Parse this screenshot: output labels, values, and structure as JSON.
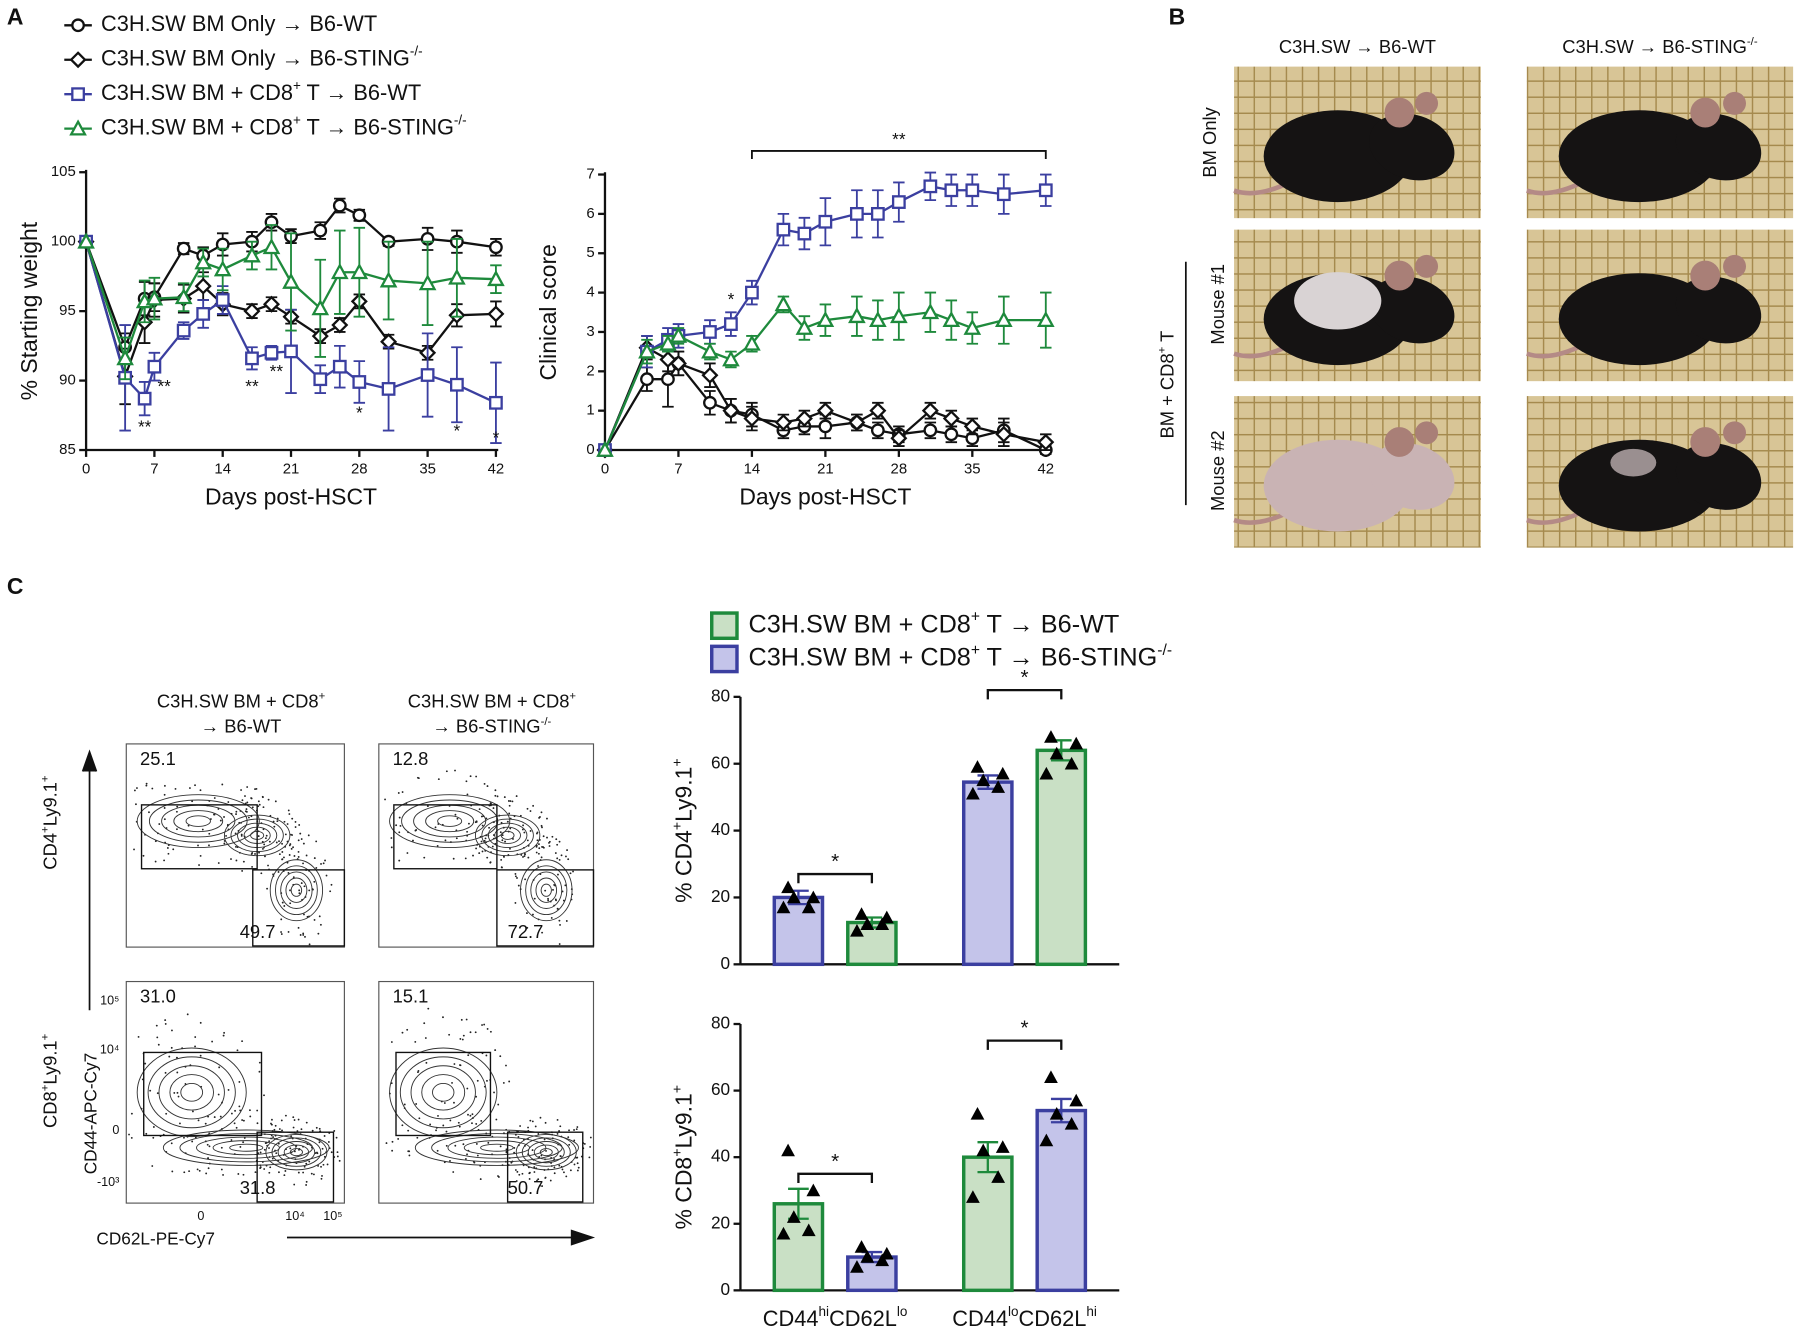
{
  "panel_labels": [
    "A",
    "B",
    "C"
  ],
  "chart_data": [
    {
      "type": "line",
      "xlabel": "Days post-HSCT",
      "ylabel": "% Starting weight",
      "x": [
        0,
        4,
        6,
        7,
        10,
        12,
        14,
        17,
        19,
        21,
        24,
        26,
        28,
        31,
        35,
        38,
        42
      ],
      "xlim": [
        0,
        42
      ],
      "xticks": [
        0,
        7,
        14,
        21,
        28,
        35,
        42
      ],
      "ylim": [
        85,
        105
      ],
      "yticks": [
        85,
        90,
        95,
        100,
        105
      ],
      "series": [
        {
          "name": "C3H.SW BM Only → B6-WT",
          "color": "#111111",
          "marker": "circle",
          "values": [
            100,
            92.4,
            95.9,
            96,
            99.5,
            99,
            99.8,
            100,
            101.4,
            100.4,
            100.8,
            102.6,
            101.9,
            100,
            100.2,
            100,
            99.6
          ],
          "errors": [
            0,
            1,
            1.2,
            1,
            0.4,
            0.6,
            0.8,
            0.7,
            0.6,
            0.5,
            0.6,
            0.5,
            0.4,
            0.3,
            0.8,
            0.8,
            0.6
          ]
        },
        {
          "name": "C3H.SW BM Only → B6-STING-/-",
          "color": "#111111",
          "marker": "diamond",
          "values": [
            100,
            90.3,
            94.2,
            95.8,
            95.9,
            96.8,
            95.5,
            95,
            95.5,
            94.6,
            93.2,
            94,
            95.7,
            92.8,
            92,
            94.7,
            94.8
          ],
          "errors": [
            0,
            2,
            1.5,
            1.2,
            1,
            1,
            0.8,
            0.5,
            0.5,
            0.5,
            0.5,
            0.5,
            0.5,
            0.5,
            0.5,
            0.8,
            0.9
          ]
        },
        {
          "name": "C3H.SW BM + CD8+ T → B6-WT",
          "color": "#3b3fa0",
          "marker": "square",
          "values": [
            100,
            90.2,
            88.7,
            91,
            93.6,
            94.8,
            95.8,
            91.6,
            92,
            92.1,
            90.1,
            91,
            89.9,
            89.4,
            90.4,
            89.7,
            88.4
          ],
          "errors": [
            0,
            3.8,
            1.2,
            1,
            0.6,
            1,
            1,
            0.8,
            0.5,
            3,
            1,
            1.5,
            1.5,
            3,
            3,
            2.7,
            2.9
          ]
        },
        {
          "name": "C3H.SW BM + CD8+ T → B6-STING-/-",
          "color": "#1e8a3c",
          "marker": "triangle",
          "values": [
            100,
            91.6,
            95.7,
            95.9,
            96,
            98.5,
            98,
            99,
            99.6,
            97.1,
            95.2,
            97.8,
            97.8,
            97.2,
            97,
            97.4,
            97.3
          ],
          "errors": [
            0,
            1.5,
            1.5,
            1.5,
            1,
            1,
            1.5,
            1,
            1.6,
            3.5,
            3.5,
            3,
            3.2,
            2.8,
            3,
            2.8,
            1
          ]
        }
      ],
      "annotations": [
        {
          "x": 6,
          "y": 86.6,
          "text": "**"
        },
        {
          "x": 8,
          "y": 89.5,
          "text": "**"
        },
        {
          "x": 17,
          "y": 89.5,
          "text": "**"
        },
        {
          "x": 19.5,
          "y": 90.6,
          "text": "**"
        },
        {
          "x": 28,
          "y": 87.6,
          "text": "*"
        },
        {
          "x": 38,
          "y": 86.3,
          "text": "*"
        },
        {
          "x": 42,
          "y": 85.8,
          "text": "*"
        }
      ]
    },
    {
      "type": "line",
      "xlabel": "Days post-HSCT",
      "ylabel": "Clinical score",
      "x": [
        0,
        4,
        6,
        7,
        10,
        12,
        14,
        17,
        19,
        21,
        24,
        26,
        28,
        31,
        33,
        35,
        38,
        42
      ],
      "xlim": [
        0,
        42
      ],
      "xticks": [
        0,
        7,
        14,
        21,
        28,
        35,
        42
      ],
      "ylim": [
        0,
        7
      ],
      "yticks": [
        0,
        1,
        2,
        3,
        4,
        5,
        6,
        7
      ],
      "series": [
        {
          "color": "#111111",
          "marker": "circle",
          "values": [
            0,
            1.8,
            1.8,
            2.2,
            1.2,
            1,
            0.9,
            0.5,
            0.6,
            0.6,
            0.7,
            0.5,
            0.4,
            0.5,
            0.4,
            0.3,
            0.5,
            0
          ],
          "errors": [
            0,
            0.3,
            0.7,
            0.3,
            0.3,
            0.3,
            0.3,
            0.2,
            0.2,
            0.3,
            0.2,
            0.2,
            0.2,
            0.2,
            0.2,
            0.2,
            0.3,
            0.1
          ]
        },
        {
          "color": "#111111",
          "marker": "diamond",
          "values": [
            0,
            2.6,
            2.3,
            2.2,
            1.9,
            1,
            0.8,
            0.7,
            0.8,
            1,
            0.7,
            1,
            0.3,
            1,
            0.8,
            0.6,
            0.4,
            0.2
          ],
          "errors": [
            0,
            0.3,
            0.3,
            0.3,
            0.3,
            0.3,
            0.3,
            0.2,
            0.2,
            0.2,
            0.2,
            0.2,
            0.2,
            0.2,
            0.2,
            0.2,
            0.3,
            0.2
          ]
        },
        {
          "color": "#3b3fa0",
          "marker": "square",
          "values": [
            0,
            2.5,
            2.8,
            2.9,
            3,
            3.2,
            4,
            5.6,
            5.5,
            5.8,
            6,
            6,
            6.3,
            6.7,
            6.6,
            6.6,
            6.5,
            6.6
          ],
          "errors": [
            0,
            0.4,
            0.3,
            0.3,
            0.3,
            0.3,
            0.3,
            0.4,
            0.4,
            0.6,
            0.6,
            0.6,
            0.5,
            0.35,
            0.4,
            0.4,
            0.5,
            0.4
          ]
        },
        {
          "color": "#1e8a3c",
          "marker": "triangle",
          "values": [
            0,
            2.5,
            2.7,
            2.9,
            2.5,
            2.3,
            2.7,
            3.7,
            3.1,
            3.3,
            3.4,
            3.3,
            3.4,
            3.5,
            3.3,
            3.1,
            3.3,
            3.3
          ],
          "errors": [
            0,
            0.3,
            0.2,
            0.2,
            0.2,
            0.2,
            0.2,
            0.2,
            0.3,
            0.4,
            0.5,
            0.5,
            0.6,
            0.5,
            0.5,
            0.4,
            0.6,
            0.7
          ]
        }
      ],
      "annotations": [
        {
          "x": 12,
          "y": 3.8,
          "text": "*"
        },
        {
          "x_range": [
            14,
            42
          ],
          "y": 7.6,
          "text": "**"
        }
      ]
    },
    {
      "type": "bar",
      "ylabel": "% CD4+Ly9.1+",
      "categories": [
        null,
        null
      ],
      "ylim": [
        0,
        80
      ],
      "yticks": [
        0,
        20,
        40,
        60,
        80
      ],
      "series": [
        {
          "color": "#3b3fa0",
          "fill": "#c4c4ea",
          "values": [
            20,
            54.5
          ],
          "errors": [
            2,
            2
          ],
          "points": [
            [
              17,
              17,
              20,
              20,
              23
            ],
            [
              51,
              53,
              55,
              57,
              59
            ]
          ]
        },
        {
          "color": "#1e8a3c",
          "fill": "#c9e0c5",
          "values": [
            12.5,
            64
          ],
          "errors": [
            1.5,
            3
          ],
          "points": [
            [
              10,
              12,
              12,
              14,
              15
            ],
            [
              57,
              60,
              63,
              66,
              68
            ]
          ]
        }
      ],
      "annotations": [
        {
          "category": 0,
          "y": 27,
          "text": "*"
        },
        {
          "category": 1,
          "y": 82,
          "text": "*"
        }
      ]
    },
    {
      "type": "bar",
      "ylabel": "% CD8+Ly9.1+",
      "categories": [
        "CD44hiCD62Llo",
        "CD44loCD62Lhi"
      ],
      "ylim": [
        0,
        80
      ],
      "yticks": [
        0,
        20,
        40,
        60,
        80
      ],
      "series": [
        {
          "color": "#1e8a3c",
          "fill": "#c9e0c5",
          "values": [
            26,
            40
          ],
          "errors": [
            4.5,
            4.5
          ],
          "points": [
            [
              17,
              18,
              22,
              30,
              42
            ],
            [
              28,
              34,
              42,
              43,
              53
            ]
          ]
        },
        {
          "color": "#3b3fa0",
          "fill": "#c4c4ea",
          "values": [
            10,
            54
          ],
          "errors": [
            1.5,
            3.5
          ],
          "points": [
            [
              7,
              9,
              10,
              11,
              13
            ],
            [
              45,
              50,
              53,
              57,
              64
            ]
          ]
        }
      ],
      "annotations": [
        {
          "category": 0,
          "y": 35,
          "text": "*"
        },
        {
          "category": 1,
          "y": 75,
          "text": "*"
        }
      ]
    }
  ],
  "legend_c": [
    {
      "name": "C3H.SW BM + CD8+ T → B6-WT",
      "color": "#1e8a3c",
      "fill": "#c9e0c5"
    },
    {
      "name": "C3H.SW BM + CD8+ T → B6-STING-/-",
      "color": "#3b3fa0",
      "fill": "#c4c4ea"
    }
  ],
  "photos": {
    "columns": [
      "C3H.SW → B6-WT",
      "C3H.SW → B6-STING-/-"
    ],
    "row_labels": [
      "BM Only",
      "Mouse #1",
      "Mouse #2"
    ],
    "group_label": "BM + CD8+ T"
  },
  "flow": {
    "columns": [
      {
        "title": [
          "C3H.SW BM + CD8+",
          "→ B6-WT"
        ]
      },
      {
        "title": [
          "C3H.SW BM + CD8+",
          "→ B6-STING-/-"
        ]
      }
    ],
    "rows": [
      {
        "label": "CD4+Ly9.1+",
        "gates": [
          [
            "25.1",
            "49.7"
          ],
          [
            "12.8",
            "72.7"
          ]
        ]
      },
      {
        "label": "CD8+Ly9.1+",
        "gates": [
          [
            "31.0",
            "31.8"
          ],
          [
            "15.1",
            "50.7"
          ]
        ]
      }
    ],
    "y_axis_label": "CD44-APC-Cy7",
    "x_axis_label": "CD62L-PE-Cy7",
    "y_ticks": [
      "10⁵",
      "10⁴",
      "0",
      "-10³"
    ],
    "x_ticks": [
      "0",
      "10⁴",
      "10⁵"
    ]
  }
}
